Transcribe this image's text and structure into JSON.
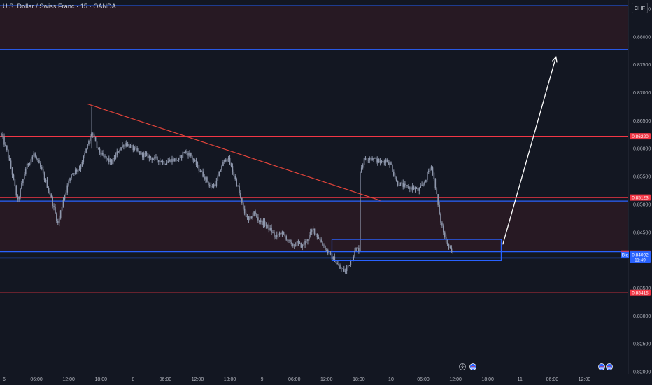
{
  "header": {
    "title": "U.S. Dollar / Swiss Franc · 15 · OANDA",
    "currency_button": "CHF"
  },
  "colors": {
    "background": "#131722",
    "candle": "#8f98ad",
    "resistance_line": "#f23645",
    "zone_line": "#2962ff",
    "zone_fill": "#2a1a24",
    "trendline": "#e4443a",
    "arrow": "#ffffff",
    "ask_tag": "#f23645",
    "price_tag": "#2962ff"
  },
  "chart_data": {
    "type": "candlestick",
    "symbol": "USDCHF",
    "timeframe": "15",
    "y_axis": {
      "min": 0.82,
      "max": 0.8865,
      "ticks": [
        "0.88500",
        "0.88000",
        "0.87500",
        "0.87000",
        "0.86500",
        "0.86000",
        "0.85500",
        "0.85000",
        "0.84500",
        "0.84000",
        "0.83500",
        "0.83000",
        "0.82500",
        "0.82000"
      ]
    },
    "x_axis": {
      "labels": [
        {
          "label": "6",
          "t": 0
        },
        {
          "label": "06:00",
          "t": 6
        },
        {
          "label": "12:00",
          "t": 12
        },
        {
          "label": "18:00",
          "t": 18
        },
        {
          "label": "8",
          "t": 24
        },
        {
          "label": "06:00",
          "t": 30
        },
        {
          "label": "12:00",
          "t": 36
        },
        {
          "label": "18:00",
          "t": 42
        },
        {
          "label": "9",
          "t": 48
        },
        {
          "label": "06:00",
          "t": 54
        },
        {
          "label": "12:00",
          "t": 60
        },
        {
          "label": "18:00",
          "t": 66
        },
        {
          "label": "10",
          "t": 72
        },
        {
          "label": "06:00",
          "t": 78
        },
        {
          "label": "12:00",
          "t": 84
        },
        {
          "label": "18:00",
          "t": 90
        },
        {
          "label": "11",
          "t": 96
        },
        {
          "label": "06:00",
          "t": 102
        },
        {
          "label": "12:00",
          "t": 108
        }
      ]
    },
    "price_path": [
      [
        -0.5,
        0.8625
      ],
      [
        0.5,
        0.8595
      ],
      [
        1.5,
        0.8555
      ],
      [
        2.5,
        0.8505
      ],
      [
        4,
        0.8565
      ],
      [
        5.5,
        0.859
      ],
      [
        7,
        0.856
      ],
      [
        8.5,
        0.852
      ],
      [
        10,
        0.8465
      ],
      [
        11,
        0.851
      ],
      [
        12.5,
        0.8555
      ],
      [
        14,
        0.8565
      ],
      [
        15,
        0.859
      ],
      [
        16.3,
        0.863
      ],
      [
        17.3,
        0.86
      ],
      [
        18.5,
        0.8585
      ],
      [
        20,
        0.8575
      ],
      [
        21.5,
        0.86
      ],
      [
        22.5,
        0.861
      ],
      [
        24,
        0.86
      ],
      [
        25.5,
        0.859
      ],
      [
        27,
        0.8585
      ],
      [
        28.5,
        0.858
      ],
      [
        30,
        0.8575
      ],
      [
        31,
        0.858
      ],
      [
        32.5,
        0.858
      ],
      [
        33.5,
        0.8595
      ],
      [
        34.5,
        0.859
      ],
      [
        35.5,
        0.8575
      ],
      [
        36.5,
        0.856
      ],
      [
        37.5,
        0.8545
      ],
      [
        38.5,
        0.853
      ],
      [
        39.5,
        0.854
      ],
      [
        40.5,
        0.857
      ],
      [
        41.5,
        0.8585
      ],
      [
        42.5,
        0.856
      ],
      [
        43.5,
        0.853
      ],
      [
        44.5,
        0.849
      ],
      [
        45.5,
        0.847
      ],
      [
        46.5,
        0.8485
      ],
      [
        47.5,
        0.847
      ],
      [
        48.5,
        0.8465
      ],
      [
        49.5,
        0.8455
      ],
      [
        50.5,
        0.844
      ],
      [
        51.5,
        0.845
      ],
      [
        52.5,
        0.844
      ],
      [
        53.5,
        0.8425
      ],
      [
        54.5,
        0.843
      ],
      [
        55.5,
        0.8425
      ],
      [
        56.5,
        0.844
      ],
      [
        57.5,
        0.8455
      ],
      [
        58.5,
        0.844
      ],
      [
        59.5,
        0.8425
      ],
      [
        60.5,
        0.841
      ],
      [
        61.5,
        0.84
      ],
      [
        62.5,
        0.8385
      ],
      [
        63.5,
        0.838
      ],
      [
        64.5,
        0.84
      ],
      [
        65.5,
        0.842
      ],
      [
        66,
        0.842
      ],
      [
        66.2,
        0.856
      ],
      [
        67,
        0.858
      ],
      [
        68,
        0.8585
      ],
      [
        69,
        0.858
      ],
      [
        70,
        0.8575
      ],
      [
        71,
        0.858
      ],
      [
        72,
        0.857
      ],
      [
        73,
        0.854
      ],
      [
        74,
        0.8535
      ],
      [
        75,
        0.853
      ],
      [
        76,
        0.853
      ],
      [
        77,
        0.8525
      ],
      [
        78,
        0.8535
      ],
      [
        79,
        0.856
      ],
      [
        79.5,
        0.857
      ],
      [
        80.3,
        0.853
      ],
      [
        81,
        0.848
      ],
      [
        82,
        0.844
      ],
      [
        82.8,
        0.8425
      ],
      [
        83.5,
        0.8412
      ]
    ],
    "horizontal_lines": [
      {
        "price": 0.8856,
        "color": "zone_line"
      },
      {
        "price": 0.87775,
        "color": "zone_line"
      },
      {
        "price": 0.8622,
        "color": "resistance_line"
      },
      {
        "price": 0.85123,
        "color": "resistance_line"
      },
      {
        "price": 0.8506,
        "color": "zone_line"
      },
      {
        "price": 0.8415,
        "color": "zone_line"
      },
      {
        "price": 0.8404,
        "color": "zone_line"
      },
      {
        "price": 0.83415,
        "color": "resistance_line"
      }
    ],
    "shaded_zones": [
      {
        "from": 0.87775,
        "to": 0.8856
      },
      {
        "from": 0.8415,
        "to": 0.8506
      }
    ],
    "trendline": {
      "from": [
        15.5,
        0.868
      ],
      "to": [
        70,
        0.8507
      ]
    },
    "rectangle": {
      "t1": 61,
      "t2": 92.5,
      "price_top": 0.8437,
      "price_bottom": 0.8399
    },
    "arrow": {
      "from": [
        92.8,
        0.8428
      ],
      "to": [
        102.7,
        0.8764
      ]
    },
    "price_tags": [
      {
        "label": "",
        "value": "0.86220",
        "price": 0.8622,
        "color": "ask_tag"
      },
      {
        "label": "",
        "value": "0.85123",
        "price": 0.85123,
        "color": "ask_tag"
      },
      {
        "label": "Ask",
        "value": "0.84118",
        "price": 0.84118,
        "color": "ask_tag"
      },
      {
        "label": "",
        "value": "0.84101",
        "price": 0.84101,
        "color": "price_tag",
        "subline": "11:49"
      },
      {
        "label": "Bid",
        "value": "0.84092",
        "price": 0.84092,
        "color": "price_tag"
      },
      {
        "label": "",
        "value": "0.83415",
        "price": 0.83415,
        "color": "ask_tag"
      }
    ]
  }
}
